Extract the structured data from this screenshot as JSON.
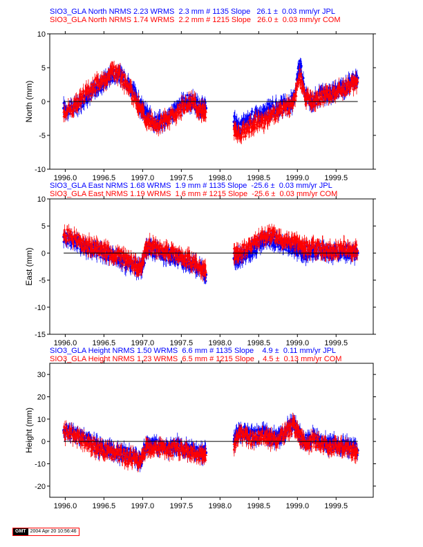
{
  "panels": [
    {
      "title_jpl": "SIO3_GLA North NRMS 2.23 WRMS  2.3 mm # 1135 Slope   26.1 ±  0.03 mm/yr JPL",
      "title_com": "SIO3_GLA North NRMS 1.74 WRMS  2.2 mm # 1215 Slope   26.0 ±  0.03 mm/yr COM"
    },
    {
      "title_jpl": "SIO3_GLA East NRMS 1.68 WRMS  1.9 mm # 1135 Slope  -25.6 ±  0.03 mm/yr JPL",
      "title_com": "SIO3_GLA East NRMS 1.19 WRMS  1.6 mm # 1215 Slope  -25.6 ±  0.03 mm/yr COM"
    },
    {
      "title_jpl": "SIO3_GLA Height NRMS 1.50 WRMS  6.6 mm # 1135 Slope    4.9 ±  0.11 mm/yr JPL",
      "title_com": "SIO3_GLA Height NRMS 1.23 WRMS  6.5 mm # 1215 Slope    4.5 ±  0.13 mm/yr COM"
    }
  ],
  "footer": {
    "logo": "GMT",
    "stamp": "2004 Apr 20 10:56:46"
  },
  "colors": {
    "jpl": "#0000ff",
    "com": "#ff0000",
    "zero_line": "#000000"
  },
  "chart_data": [
    {
      "type": "scatter",
      "ylabel": "North (mm)",
      "xlim": [
        1995.8,
        1999.98
      ],
      "ylim": [
        -10,
        10
      ],
      "xticks": [
        "1996.0",
        "1996.5",
        "1997.0",
        "1997.5",
        "1998.0",
        "1998.5",
        "1999.0",
        "1999.5"
      ],
      "yticks": [
        "-10",
        "-5",
        "0",
        "5",
        "10"
      ],
      "zero_line": 0,
      "series": [
        {
          "name": "JPL",
          "x": [
            1995.98,
            1996.1,
            1996.2,
            1996.3,
            1996.4,
            1996.5,
            1996.6,
            1996.7,
            1996.8,
            1996.9,
            1996.98,
            1997.06,
            1997.15,
            1997.25,
            1997.35,
            1997.45,
            1997.55,
            1997.65,
            1997.75,
            1997.82,
            1998.18,
            1998.25,
            1998.35,
            1998.45,
            1998.55,
            1998.65,
            1998.75,
            1998.85,
            1998.95,
            1999.03,
            1999.1,
            1999.2,
            1999.3,
            1999.4,
            1999.5,
            1999.6,
            1999.7,
            1999.78
          ],
          "y": [
            -1,
            -1,
            0,
            1,
            2,
            3,
            4,
            4,
            3,
            1,
            -1,
            -2,
            -3,
            -3,
            -2,
            -1,
            0,
            0,
            -1,
            -1,
            -3,
            -4,
            -3,
            -2,
            -2,
            -1,
            -1,
            -0.5,
            0,
            6,
            1,
            0,
            1,
            1,
            1.5,
            2,
            3,
            3.5
          ]
        },
        {
          "name": "COM",
          "x": [
            1995.98,
            1996.1,
            1996.2,
            1996.3,
            1996.4,
            1996.5,
            1996.6,
            1996.7,
            1996.8,
            1996.9,
            1996.98,
            1997.06,
            1997.15,
            1997.25,
            1997.35,
            1997.45,
            1997.55,
            1997.65,
            1997.75,
            1997.82,
            1998.18,
            1998.25,
            1998.35,
            1998.45,
            1998.55,
            1998.65,
            1998.75,
            1998.85,
            1998.95,
            1999.03,
            1999.1,
            1999.2,
            1999.3,
            1999.4,
            1999.5,
            1999.6,
            1999.7,
            1999.78
          ],
          "y": [
            -1.5,
            -1,
            0.5,
            1.5,
            2.5,
            3,
            4.5,
            4,
            2.5,
            0.5,
            -1.5,
            -2.5,
            -3.5,
            -3,
            -2.5,
            -1.5,
            -0.5,
            0,
            -1.5,
            -1.5,
            -4,
            -5,
            -4,
            -3,
            -3,
            -2,
            -1.5,
            -1,
            -0.5,
            4,
            0.5,
            0,
            0.5,
            1,
            1.5,
            2,
            2.5,
            3
          ]
        }
      ]
    },
    {
      "type": "scatter",
      "ylabel": "East (mm)",
      "xlim": [
        1995.8,
        1999.98
      ],
      "ylim": [
        -15,
        10
      ],
      "xticks": [
        "1996.0",
        "1996.5",
        "1997.0",
        "1997.5",
        "1998.0",
        "1998.5",
        "1999.0",
        "1999.5"
      ],
      "yticks": [
        "-15",
        "-10",
        "-5",
        "0",
        "5",
        "10"
      ],
      "zero_line": 0,
      "series": [
        {
          "name": "JPL",
          "x": [
            1995.98,
            1996.1,
            1996.2,
            1996.3,
            1996.4,
            1996.5,
            1996.6,
            1996.7,
            1996.8,
            1996.9,
            1996.98,
            1997.06,
            1997.15,
            1997.25,
            1997.35,
            1997.45,
            1997.55,
            1997.65,
            1997.75,
            1997.82,
            1998.18,
            1998.25,
            1998.35,
            1998.45,
            1998.55,
            1998.65,
            1998.75,
            1998.85,
            1998.95,
            1999.03,
            1999.1,
            1999.2,
            1999.3,
            1999.4,
            1999.5,
            1999.6,
            1999.7,
            1999.78
          ],
          "y": [
            3,
            2.5,
            1.5,
            1,
            0.5,
            0,
            -0.5,
            -1,
            -2,
            -2.5,
            -3,
            1,
            0.5,
            0,
            -0.5,
            -1,
            -1.5,
            -2,
            -3,
            -4,
            -1,
            -1,
            0,
            1,
            2,
            2.5,
            2,
            1.5,
            1,
            0.5,
            0,
            0.5,
            0.5,
            0,
            0,
            0.5,
            0,
            0
          ]
        },
        {
          "name": "COM",
          "x": [
            1995.98,
            1996.1,
            1996.2,
            1996.3,
            1996.4,
            1996.5,
            1996.6,
            1996.7,
            1996.8,
            1996.9,
            1996.98,
            1997.06,
            1997.15,
            1997.25,
            1997.35,
            1997.45,
            1997.55,
            1997.65,
            1997.75,
            1997.82,
            1998.18,
            1998.25,
            1998.35,
            1998.45,
            1998.55,
            1998.65,
            1998.75,
            1998.85,
            1998.95,
            1999.03,
            1999.1,
            1999.2,
            1999.3,
            1999.4,
            1999.5,
            1999.6,
            1999.7,
            1999.78
          ],
          "y": [
            3.5,
            3,
            2,
            1.5,
            1,
            0.5,
            0,
            -0.5,
            -1.5,
            -2,
            -2.5,
            1.5,
            1,
            0.5,
            0,
            -0.5,
            -1,
            -1.5,
            -2.5,
            -3.5,
            0,
            0,
            1,
            2,
            3,
            3.5,
            3,
            2.5,
            2,
            1.5,
            1,
            1,
            1,
            0.5,
            0.5,
            1,
            0.5,
            0.5
          ]
        }
      ]
    },
    {
      "type": "scatter",
      "ylabel": "Height (mm)",
      "xlim": [
        1995.8,
        1999.98
      ],
      "ylim": [
        -25,
        35
      ],
      "xticks": [
        "1996.0",
        "1996.5",
        "1997.0",
        "1997.5",
        "1998.0",
        "1998.5",
        "1999.0",
        "1999.5"
      ],
      "yticks": [
        "-20",
        "-10",
        "0",
        "10",
        "20",
        "30"
      ],
      "zero_line": 0,
      "series": [
        {
          "name": "JPL",
          "x": [
            1995.98,
            1996.1,
            1996.2,
            1996.3,
            1996.4,
            1996.5,
            1996.6,
            1996.7,
            1996.8,
            1996.9,
            1996.98,
            1997.06,
            1997.15,
            1997.25,
            1997.35,
            1997.45,
            1997.55,
            1997.65,
            1997.75,
            1997.82,
            1998.18,
            1998.25,
            1998.35,
            1998.45,
            1998.55,
            1998.65,
            1998.75,
            1998.85,
            1998.95,
            1999.03,
            1999.1,
            1999.2,
            1999.3,
            1999.4,
            1999.5,
            1999.6,
            1999.7,
            1999.78
          ],
          "y": [
            5,
            4,
            2,
            0,
            -2,
            -3,
            -4,
            -5,
            -6,
            -7,
            -8,
            -1,
            -2,
            -2,
            -3,
            -2,
            -3,
            -4,
            -5,
            -5,
            0,
            5,
            3,
            2,
            4,
            2,
            1,
            5,
            8,
            3,
            0,
            2,
            0,
            -1,
            -1,
            -2,
            -3,
            -4
          ]
        },
        {
          "name": "COM",
          "x": [
            1995.98,
            1996.1,
            1996.2,
            1996.3,
            1996.4,
            1996.5,
            1996.6,
            1996.7,
            1996.8,
            1996.9,
            1996.98,
            1997.06,
            1997.15,
            1997.25,
            1997.35,
            1997.45,
            1997.55,
            1997.65,
            1997.75,
            1997.82,
            1998.18,
            1998.25,
            1998.35,
            1998.45,
            1998.55,
            1998.65,
            1998.75,
            1998.85,
            1998.95,
            1999.03,
            1999.1,
            1999.2,
            1999.3,
            1999.4,
            1999.5,
            1999.6,
            1999.7,
            1999.78
          ],
          "y": [
            4,
            3,
            1,
            -1,
            -3,
            -4,
            -5,
            -6,
            -7,
            -8,
            -9,
            -2,
            -3,
            -3,
            -4,
            -3,
            -4,
            -5,
            -6,
            -6,
            -1,
            4,
            2,
            1,
            3,
            1,
            0,
            4,
            7,
            2,
            -1,
            1,
            -1,
            -2,
            -2,
            -3,
            -4,
            -5
          ]
        }
      ]
    }
  ]
}
